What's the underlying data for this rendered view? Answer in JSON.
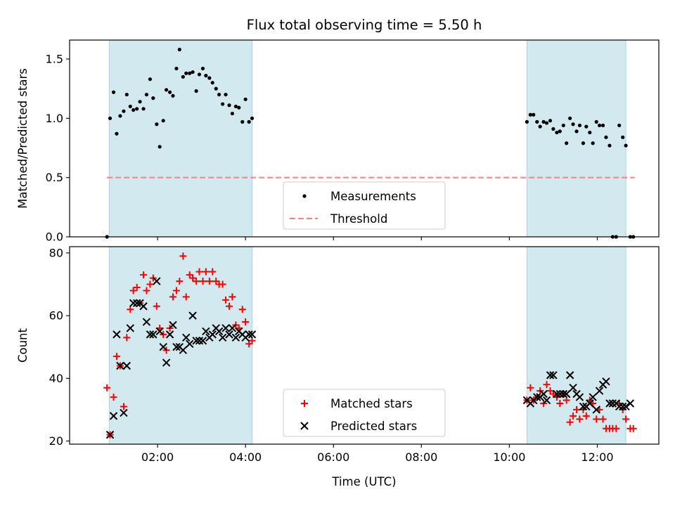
{
  "chart_data": {
    "title": "Flux total observing time = 5.50 h",
    "shaded_spans": [
      [
        0.9,
        4.15
      ],
      [
        10.4,
        12.65
      ]
    ],
    "shade_color": "#d2e9ef",
    "shade_edge_color": "#a9d4de",
    "xlabel": "Time (UTC)",
    "xticks": [
      2,
      4,
      6,
      8,
      10,
      12
    ],
    "xtick_labels": [
      "02:00",
      "04:00",
      "06:00",
      "08:00",
      "10:00",
      "12:00"
    ],
    "xlim": [
      0.0,
      13.4
    ],
    "panels": [
      {
        "name": "ratio",
        "type": "scatter",
        "ylabel": "Matched/Predicted stars",
        "ylim": [
          0.0,
          1.66
        ],
        "yticks": [
          0.0,
          0.5,
          1.0,
          1.5
        ],
        "ytick_labels": [
          "0.0",
          "0.5",
          "1.0",
          "1.5"
        ],
        "threshold": {
          "value": 0.5,
          "x_range": [
            0.85,
            12.85
          ],
          "color": "#ff7f7f",
          "label": "Threshold"
        },
        "series": [
          {
            "name": "Measurements",
            "marker": "dot",
            "color": "#000000",
            "x": [
              0.85,
              0.92,
              1.0,
              1.07,
              1.15,
              1.23,
              1.3,
              1.38,
              1.45,
              1.53,
              1.6,
              1.68,
              1.75,
              1.83,
              1.9,
              1.98,
              2.05,
              2.13,
              2.2,
              2.28,
              2.35,
              2.43,
              2.5,
              2.58,
              2.65,
              2.73,
              2.8,
              2.88,
              2.95,
              3.03,
              3.1,
              3.18,
              3.25,
              3.33,
              3.4,
              3.48,
              3.55,
              3.63,
              3.7,
              3.78,
              3.85,
              3.93,
              4.0,
              4.08,
              4.15,
              10.4,
              10.48,
              10.55,
              10.63,
              10.7,
              10.78,
              10.85,
              10.93,
              11.0,
              11.08,
              11.15,
              11.23,
              11.3,
              11.38,
              11.45,
              11.53,
              11.6,
              11.68,
              11.75,
              11.83,
              11.9,
              11.98,
              12.05,
              12.13,
              12.2,
              12.28,
              12.35,
              12.43,
              12.5,
              12.58,
              12.65,
              12.75,
              12.82
            ],
            "y": [
              0.0,
              1.0,
              1.22,
              0.87,
              1.02,
              1.06,
              1.2,
              1.1,
              1.07,
              1.08,
              1.14,
              1.08,
              1.2,
              1.33,
              1.17,
              0.95,
              0.76,
              0.98,
              1.24,
              1.22,
              1.19,
              1.42,
              1.58,
              1.35,
              1.38,
              1.38,
              1.39,
              1.23,
              1.37,
              1.42,
              1.36,
              1.34,
              1.3,
              1.25,
              1.2,
              1.12,
              1.2,
              1.11,
              1.04,
              1.1,
              1.09,
              0.97,
              1.16,
              0.97,
              1.0,
              0.97,
              1.03,
              1.03,
              0.97,
              0.93,
              0.97,
              0.96,
              0.98,
              0.91,
              0.88,
              0.89,
              0.94,
              0.79,
              1.0,
              0.95,
              0.89,
              0.94,
              0.79,
              0.93,
              0.88,
              0.79,
              0.97,
              0.94,
              0.94,
              0.84,
              0.77,
              0.0,
              0.0,
              0.94,
              0.84,
              0.77,
              0.0,
              0.0
            ]
          }
        ],
        "legend": [
          "Measurements",
          "Threshold"
        ],
        "legend_position": "lower-center"
      },
      {
        "name": "counts",
        "type": "scatter",
        "ylabel": "Count",
        "ylim": [
          19.0,
          82.0
        ],
        "yticks": [
          20,
          40,
          60,
          80
        ],
        "ytick_labels": [
          "20",
          "40",
          "60",
          "80"
        ],
        "series": [
          {
            "name": "Matched stars",
            "marker": "plus",
            "color": "#ff0000",
            "x": [
              0.85,
              0.92,
              1.0,
              1.07,
              1.15,
              1.23,
              1.3,
              1.38,
              1.45,
              1.53,
              1.6,
              1.68,
              1.75,
              1.83,
              1.9,
              1.98,
              2.05,
              2.13,
              2.2,
              2.28,
              2.35,
              2.43,
              2.5,
              2.58,
              2.65,
              2.73,
              2.8,
              2.88,
              2.95,
              3.03,
              3.1,
              3.18,
              3.25,
              3.33,
              3.4,
              3.48,
              3.55,
              3.63,
              3.7,
              3.78,
              3.85,
              3.93,
              4.0,
              4.08,
              4.15,
              10.4,
              10.48,
              10.55,
              10.63,
              10.7,
              10.78,
              10.85,
              10.93,
              11.0,
              11.08,
              11.15,
              11.23,
              11.3,
              11.38,
              11.45,
              11.53,
              11.6,
              11.68,
              11.75,
              11.83,
              11.9,
              11.98,
              12.05,
              12.13,
              12.2,
              12.28,
              12.35,
              12.43,
              12.5,
              12.58,
              12.65,
              12.75,
              12.82
            ],
            "y": [
              37,
              22,
              34,
              47,
              44,
              31,
              53,
              62,
              68,
              69,
              64,
              73,
              68,
              70,
              72,
              63,
              56,
              54,
              49,
              56,
              66,
              68,
              71,
              79,
              66,
              73,
              72,
              71,
              74,
              71,
              74,
              71,
              74,
              71,
              70,
              70,
              65,
              63,
              66,
              57,
              56,
              62,
              58,
              51,
              52,
              33,
              37,
              33,
              34,
              36,
              32,
              38,
              36,
              35,
              34,
              32,
              35,
              33,
              26,
              28,
              30,
              27,
              30,
              28,
              33,
              32,
              27,
              30,
              27,
              24,
              24,
              24,
              24,
              32,
              30,
              27,
              24,
              24
            ]
          },
          {
            "name": "Predicted stars",
            "marker": "x",
            "color": "#000000",
            "x": [
              0.92,
              1.0,
              1.07,
              1.15,
              1.23,
              1.3,
              1.38,
              1.45,
              1.53,
              1.6,
              1.68,
              1.75,
              1.83,
              1.9,
              1.98,
              2.05,
              2.13,
              2.2,
              2.28,
              2.35,
              2.43,
              2.5,
              2.58,
              2.65,
              2.73,
              2.8,
              2.88,
              2.95,
              3.03,
              3.1,
              3.18,
              3.25,
              3.33,
              3.4,
              3.48,
              3.55,
              3.63,
              3.7,
              3.78,
              3.85,
              3.93,
              4.0,
              4.08,
              4.15,
              10.4,
              10.48,
              10.55,
              10.63,
              10.7,
              10.78,
              10.85,
              10.93,
              11.0,
              11.08,
              11.15,
              11.23,
              11.3,
              11.38,
              11.45,
              11.53,
              11.6,
              11.68,
              11.75,
              11.83,
              11.9,
              11.98,
              12.05,
              12.13,
              12.2,
              12.28,
              12.35,
              12.43,
              12.5,
              12.58,
              12.65,
              12.75
            ],
            "y": [
              22,
              28,
              54,
              44,
              29,
              44,
              56,
              64,
              64,
              64,
              63,
              58,
              54,
              54,
              71,
              55,
              50,
              45,
              54,
              57,
              50,
              50,
              49,
              53,
              51,
              60,
              52,
              52,
              52,
              55,
              53,
              54,
              56,
              55,
              53,
              56,
              54,
              56,
              53,
              55,
              54,
              53,
              54,
              54,
              33,
              32,
              33,
              34,
              34,
              35,
              33,
              41,
              41,
              35,
              35,
              35,
              35,
              41,
              37,
              35,
              34,
              31,
              31,
              32,
              34,
              30,
              36,
              38,
              39,
              32,
              32,
              32,
              31,
              31,
              31,
              32
            ]
          }
        ],
        "legend": [
          "Matched stars",
          "Predicted stars"
        ],
        "legend_position": "lower-center"
      }
    ]
  }
}
